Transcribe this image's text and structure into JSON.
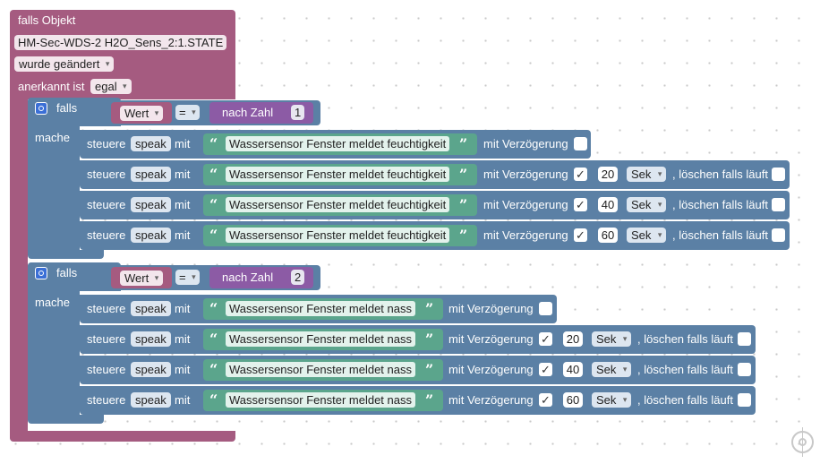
{
  "trigger": {
    "title": "falls Objekt",
    "object_id": "HM-Sec-WDS-2 H2O_Sens_2:1.STATE",
    "change_mode": "wurde geändert",
    "ack_label": "anerkannt ist",
    "ack_value": "egal"
  },
  "groups": [
    {
      "if_label": "falls",
      "do_label": "mache",
      "var": "Wert",
      "op": "=",
      "num_label": "nach Zahl",
      "num_value": "1",
      "rows": [
        {
          "steuere": "steuere",
          "target": "speak",
          "mit": "mit",
          "text": "Wassersensor Fenster meldet feuchtigkeit",
          "delay_label": "mit Verzögerung",
          "checked": "",
          "delay": "",
          "unit": "",
          "clear_label": "",
          "clear_checked": ""
        },
        {
          "steuere": "steuere",
          "target": "speak",
          "mit": "mit",
          "text": "Wassersensor Fenster meldet feuchtigkeit",
          "delay_label": "mit Verzögerung",
          "checked": "✓",
          "delay": "20",
          "unit": "Sek",
          "clear_label": ", löschen falls läuft",
          "clear_checked": ""
        },
        {
          "steuere": "steuere",
          "target": "speak",
          "mit": "mit",
          "text": "Wassersensor Fenster meldet feuchtigkeit",
          "delay_label": "mit Verzögerung",
          "checked": "✓",
          "delay": "40",
          "unit": "Sek",
          "clear_label": ", löschen falls läuft",
          "clear_checked": ""
        },
        {
          "steuere": "steuere",
          "target": "speak",
          "mit": "mit",
          "text": "Wassersensor Fenster meldet feuchtigkeit",
          "delay_label": "mit Verzögerung",
          "checked": "✓",
          "delay": "60",
          "unit": "Sek",
          "clear_label": ", löschen falls läuft",
          "clear_checked": ""
        }
      ]
    },
    {
      "if_label": "falls",
      "do_label": "mache",
      "var": "Wert",
      "op": "=",
      "num_label": "nach Zahl",
      "num_value": "2",
      "rows": [
        {
          "steuere": "steuere",
          "target": "speak",
          "mit": "mit",
          "text": "Wassersensor Fenster meldet nass",
          "delay_label": "mit Verzögerung",
          "checked": "",
          "delay": "",
          "unit": "",
          "clear_label": "",
          "clear_checked": ""
        },
        {
          "steuere": "steuere",
          "target": "speak",
          "mit": "mit",
          "text": "Wassersensor Fenster meldet nass",
          "delay_label": "mit Verzögerung",
          "checked": "✓",
          "delay": "20",
          "unit": "Sek",
          "clear_label": ", löschen falls läuft",
          "clear_checked": ""
        },
        {
          "steuere": "steuere",
          "target": "speak",
          "mit": "mit",
          "text": "Wassersensor Fenster meldet nass",
          "delay_label": "mit Verzögerung",
          "checked": "✓",
          "delay": "40",
          "unit": "Sek",
          "clear_label": ", löschen falls läuft",
          "clear_checked": ""
        },
        {
          "steuere": "steuere",
          "target": "speak",
          "mit": "mit",
          "text": "Wassersensor Fenster meldet nass",
          "delay_label": "mit Verzögerung",
          "checked": "✓",
          "delay": "60",
          "unit": "Sek",
          "clear_label": ", löschen falls läuft",
          "clear_checked": ""
        }
      ]
    }
  ],
  "quote_open": "“",
  "quote_close": "”",
  "colors": {
    "trigger": "#a55b80",
    "logic": "#5b80a5",
    "text": "#5ba58c",
    "math": "#8c5ba5"
  },
  "icons": {
    "gear": "gear-icon",
    "center": "recenter-icon"
  }
}
